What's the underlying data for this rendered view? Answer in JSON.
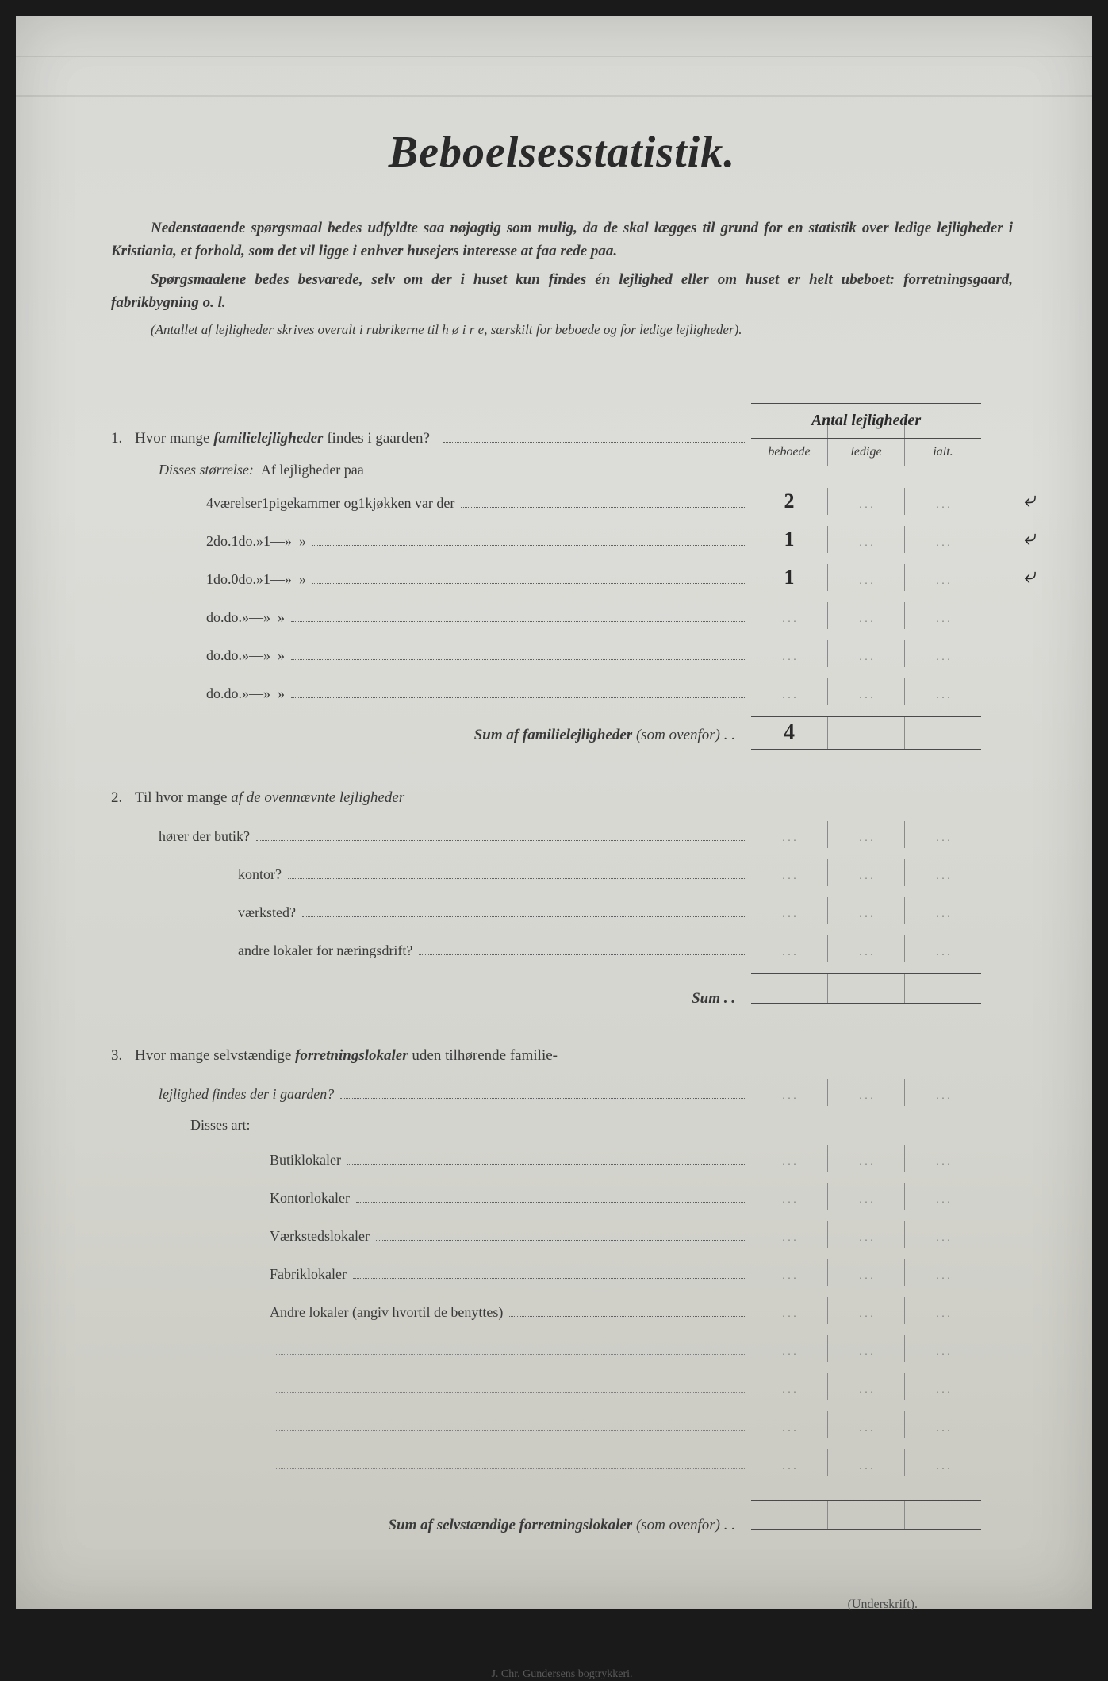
{
  "title": "Beboelsesstatistik.",
  "intro": {
    "p1": "Nedenstaaende spørgsmaal bedes udfyldte saa nøjagtig som mulig, da de skal lægges til grund for en statistik over ledige lejligheder i Kristiania, et forhold, som det vil ligge i enhver husejers interesse at faa rede paa.",
    "p2": "Spørgsmaalene bedes besvarede, selv om der i huset kun findes én lejlighed eller om huset er helt ubeboet: forretningsgaard, fabrikbygning o. l.",
    "p3": "(Antallet af lejligheder skrives overalt i rubrikerne til h ø i r e, særskilt for beboede og for ledige lejligheder)."
  },
  "table_header": {
    "title": "Antal lejligheder",
    "cols": [
      "beboede",
      "ledige",
      "ialt."
    ]
  },
  "q1": {
    "num": "1.",
    "text_a": "Hvor mange ",
    "text_b": "familielejligheder",
    "text_c": " findes i gaarden?",
    "sub": "Disses størrelse:",
    "sub2": "Af lejligheder paa",
    "rows": [
      {
        "vaer": "4",
        "pig": "1",
        "kjok": "1",
        "beb": "2",
        "led": "",
        "ialt": "",
        "mark": "⤶"
      },
      {
        "vaer": "2",
        "pig": "1",
        "kjok": "1",
        "beb": "1",
        "led": "",
        "ialt": "",
        "mark": "⤶"
      },
      {
        "vaer": "1",
        "pig": "0",
        "kjok": "1",
        "beb": "1",
        "led": "",
        "ialt": "",
        "mark": "⤶"
      },
      {
        "vaer": "",
        "pig": "",
        "kjok": "",
        "beb": "",
        "led": "",
        "ialt": "",
        "mark": ""
      },
      {
        "vaer": "",
        "pig": "",
        "kjok": "",
        "beb": "",
        "led": "",
        "ialt": "",
        "mark": ""
      },
      {
        "vaer": "",
        "pig": "",
        "kjok": "",
        "beb": "",
        "led": "",
        "ialt": "",
        "mark": ""
      }
    ],
    "labels": {
      "vaer": "værelser",
      "pig": "pigekammer og",
      "kjok": "kjøkken var der",
      "do": "do.",
      "dash": "—",
      "quote": "»"
    },
    "sum_label": "Sum af familielejligheder",
    "sum_paren": "(som ovenfor) . .",
    "sum_val": "4"
  },
  "q2": {
    "num": "2.",
    "text": "Til hvor mange af de ovennævnte lejligheder",
    "text_i": "af de ovennævnte lejligheder",
    "sub": "hører der butik?",
    "items": [
      "kontor?",
      "værksted?",
      "andre lokaler for næringsdrift?"
    ],
    "sum": "Sum . ."
  },
  "q3": {
    "num": "3.",
    "text_a": "Hvor mange selvstændige ",
    "text_b": "forretningslokaler",
    "text_c": " uden tilhørende familie-",
    "text_d": "lejlighed findes der i gaarden?",
    "sub": "Disses art:",
    "items": [
      "Butiklokaler",
      "Kontorlokaler",
      "Værkstedslokaler",
      "Fabriklokaler",
      "Andre lokaler (angiv hvortil de benyttes)"
    ],
    "sum_label": "Sum af selvstændige forretningslokaler",
    "sum_paren": "(som ovenfor) . ."
  },
  "signature": "(Underskrift).",
  "printer": "J. Chr. Gundersens bogtrykkeri."
}
